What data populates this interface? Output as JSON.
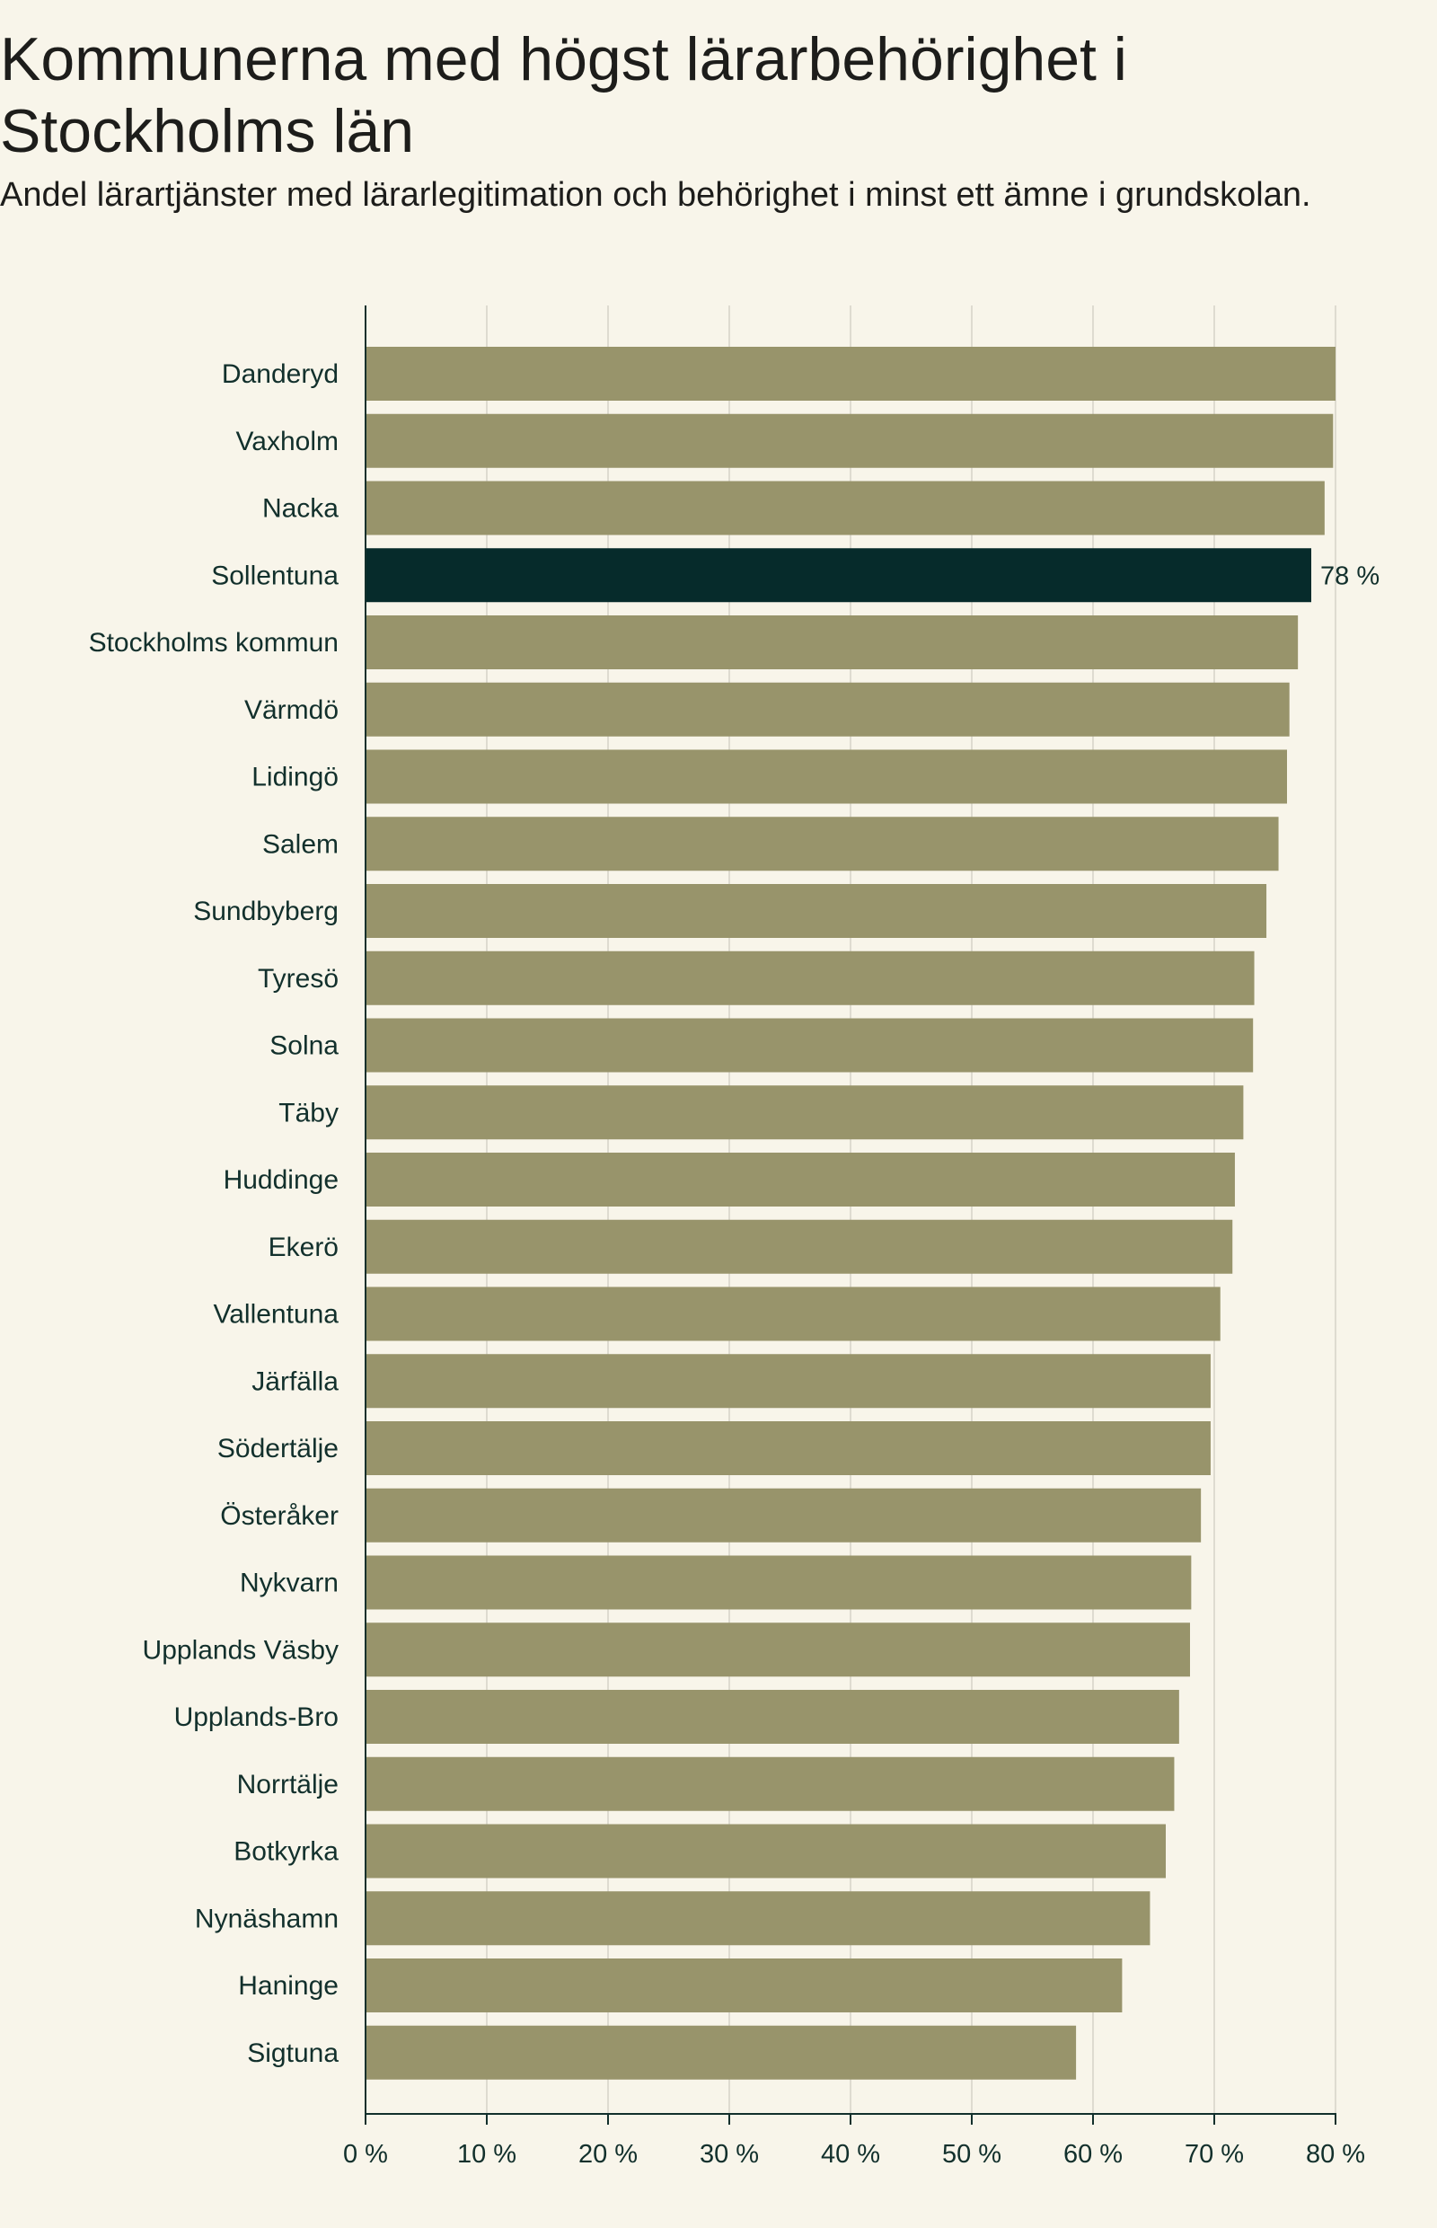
{
  "title": "Kommunerna med högst lärarbehörighet i Stockholms län",
  "subtitle": "Andel lärartjänster med lärarlegitimation och behörighet i minst ett ämne i grundskolan.",
  "colors": {
    "bar": "#98946b",
    "highlight": "#062b2b",
    "grid": "#dedbd0",
    "axis": "#12302c",
    "background": "#f8f5ea"
  },
  "chart_data": {
    "type": "bar",
    "orientation": "horizontal",
    "title": "Kommunerna med högst lärarbehörighet i Stockholms län",
    "subtitle": "Andel lärartjänster med lärarlegitimation och behörighet i minst ett ämne i grundskolan.",
    "categories": [
      "Danderyd",
      "Vaxholm",
      "Nacka",
      "Sollentuna",
      "Stockholms kommun",
      "Värmdö",
      "Lidingö",
      "Salem",
      "Sundbyberg",
      "Tyresö",
      "Solna",
      "Täby",
      "Huddinge",
      "Ekerö",
      "Vallentuna",
      "Järfälla",
      "Södertälje",
      "Österåker",
      "Nykvarn",
      "Upplands Väsby",
      "Upplands-Bro",
      "Norrtälje",
      "Botkyrka",
      "Nynäshamn",
      "Haninge",
      "Sigtuna"
    ],
    "values": [
      80.0,
      79.8,
      79.1,
      78.0,
      76.9,
      76.2,
      76.0,
      75.3,
      74.3,
      73.3,
      73.2,
      72.4,
      71.7,
      71.5,
      70.5,
      69.7,
      69.7,
      68.9,
      68.1,
      68.0,
      67.1,
      66.7,
      66.0,
      64.7,
      62.4,
      58.6
    ],
    "highlight": "Sollentuna",
    "data_labels": [
      {
        "category": "Sollentuna",
        "text": "78 %"
      }
    ],
    "xlim": [
      0,
      80
    ],
    "xticks": [
      0,
      10,
      20,
      30,
      40,
      50,
      60,
      70,
      80
    ],
    "xtick_labels": [
      "0 %",
      "10 %",
      "20 %",
      "30 %",
      "40 %",
      "50 %",
      "60 %",
      "70 %",
      "80 %"
    ],
    "xlabel": "",
    "ylabel": "",
    "grid": true
  }
}
